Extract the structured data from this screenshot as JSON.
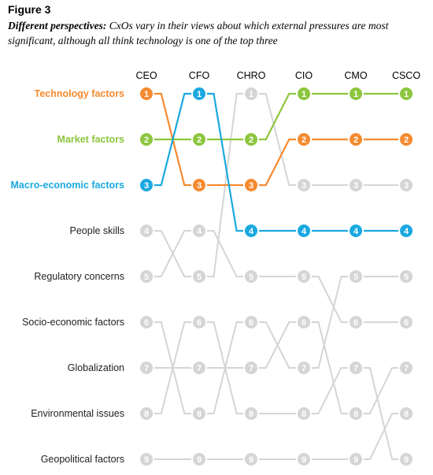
{
  "header": {
    "figure_label": "Figure 3",
    "subtitle_lead": "Different perspectives:",
    "subtitle_rest": " CxOs vary in their views about which external pressures are most significant, although all think technology is one of the top three"
  },
  "chart_data": {
    "type": "line",
    "title": "",
    "columns": [
      "CEO",
      "CFO",
      "CHRO",
      "CIO",
      "CMO",
      "CSCO"
    ],
    "row_labels": [
      "Technology factors",
      "Market factors",
      "Macro-economic factors",
      "People skills",
      "Regulatory concerns",
      "Socio-economic factors",
      "Globalization",
      "Environmental issues",
      "Geopolitical factors"
    ],
    "ranks": [
      1,
      2,
      3,
      4,
      5,
      6,
      7,
      8,
      9
    ],
    "series": [
      {
        "name": "Technology factors",
        "color": "#f58a2f",
        "highlight": true,
        "ranks": [
          1,
          3,
          3,
          2,
          2,
          2
        ]
      },
      {
        "name": "Market factors",
        "color": "#8cc63e",
        "highlight": true,
        "ranks": [
          2,
          2,
          2,
          1,
          1,
          1
        ]
      },
      {
        "name": "Macro-economic factors",
        "color": "#1aa9e0",
        "highlight": true,
        "ranks": [
          3,
          1,
          4,
          4,
          4,
          4
        ]
      },
      {
        "name": "People skills",
        "color": "#d5d5d5",
        "highlight": false,
        "ranks": [
          4,
          5,
          1,
          3,
          3,
          3
        ]
      },
      {
        "name": "Regulatory concerns",
        "color": "#d5d5d5",
        "highlight": false,
        "ranks": [
          5,
          4,
          5,
          5,
          6,
          6
        ]
      },
      {
        "name": "Socio-economic factors",
        "color": "#d5d5d5",
        "highlight": false,
        "ranks": [
          6,
          8,
          6,
          7,
          5,
          5
        ]
      },
      {
        "name": "Globalization",
        "color": "#d5d5d5",
        "highlight": false,
        "ranks": [
          7,
          7,
          7,
          6,
          8,
          7
        ]
      },
      {
        "name": "Environmental issues",
        "color": "#d5d5d5",
        "highlight": false,
        "ranks": [
          8,
          6,
          8,
          8,
          7,
          9
        ]
      },
      {
        "name": "Geopolitical factors",
        "color": "#d5d5d5",
        "highlight": false,
        "ranks": [
          9,
          9,
          9,
          9,
          9,
          8
        ]
      }
    ],
    "label_colors": {
      "highlight_default": "#000000",
      "muted": "#000000"
    },
    "grid": false
  }
}
